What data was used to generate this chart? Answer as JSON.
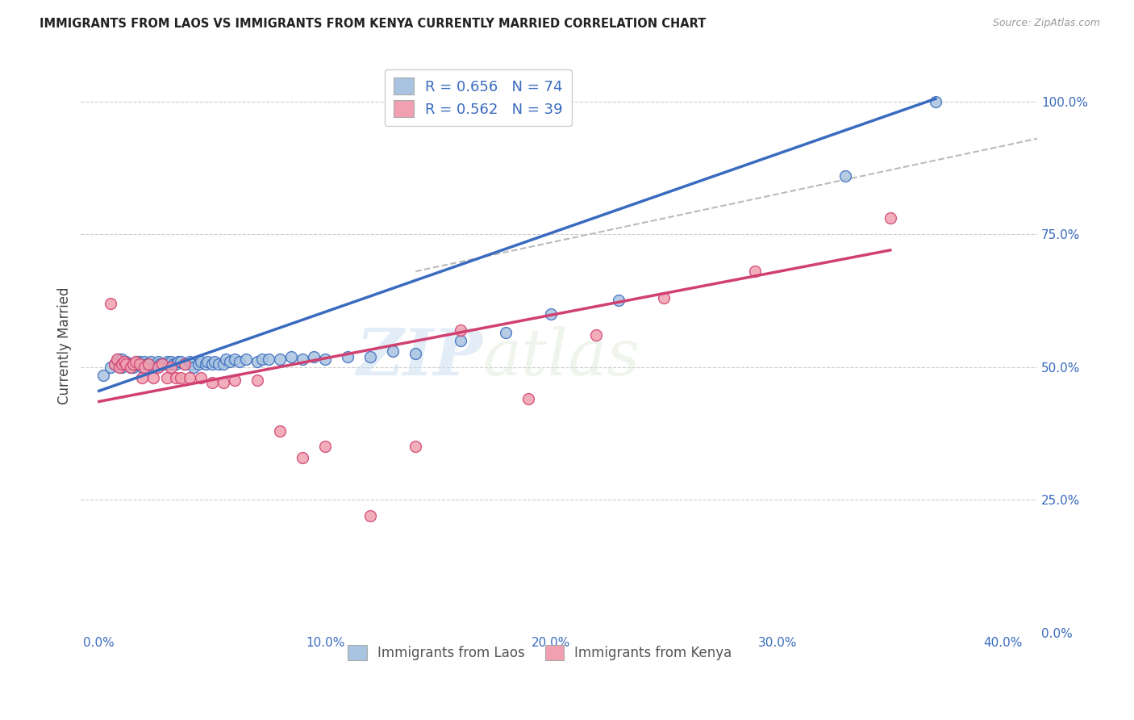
{
  "title": "IMMIGRANTS FROM LAOS VS IMMIGRANTS FROM KENYA CURRENTLY MARRIED CORRELATION CHART",
  "source": "Source: ZipAtlas.com",
  "xlabel_vals": [
    0.0,
    0.1,
    0.2,
    0.3,
    0.4
  ],
  "ylabel_vals": [
    0.0,
    0.25,
    0.5,
    0.75,
    1.0
  ],
  "xlim": [
    -0.008,
    0.415
  ],
  "ylim": [
    0.0,
    1.08
  ],
  "laos_R": 0.656,
  "laos_N": 74,
  "kenya_R": 0.562,
  "kenya_N": 39,
  "laos_color": "#a8c4e0",
  "laos_line_color": "#3a6bbf",
  "kenya_color": "#f0a0b0",
  "kenya_line_color": "#d04070",
  "watermark_zip": "ZIP",
  "watermark_atlas": "atlas",
  "background_color": "#ffffff",
  "laos_line_x0": 0.0,
  "laos_line_y0": 0.455,
  "laos_line_x1": 0.37,
  "laos_line_y1": 1.005,
  "kenya_line_x0": 0.0,
  "kenya_line_y0": 0.435,
  "kenya_line_x1": 0.35,
  "kenya_line_y1": 0.72,
  "dash_line_x0": 0.14,
  "dash_line_y0": 0.68,
  "dash_line_x1": 0.415,
  "dash_line_y1": 0.93,
  "laos_x": [
    0.002,
    0.005,
    0.007,
    0.008,
    0.009,
    0.009,
    0.01,
    0.01,
    0.01,
    0.01,
    0.011,
    0.012,
    0.013,
    0.014,
    0.015,
    0.015,
    0.016,
    0.017,
    0.018,
    0.018,
    0.019,
    0.02,
    0.02,
    0.021,
    0.022,
    0.023,
    0.024,
    0.025,
    0.026,
    0.027,
    0.028,
    0.03,
    0.03,
    0.031,
    0.032,
    0.033,
    0.034,
    0.035,
    0.036,
    0.038,
    0.04,
    0.041,
    0.042,
    0.044,
    0.045,
    0.047,
    0.048,
    0.05,
    0.051,
    0.053,
    0.055,
    0.056,
    0.058,
    0.06,
    0.062,
    0.065,
    0.07,
    0.072,
    0.075,
    0.08,
    0.085,
    0.09,
    0.095,
    0.1,
    0.11,
    0.12,
    0.13,
    0.14,
    0.16,
    0.18,
    0.2,
    0.23,
    0.33,
    0.37
  ],
  "laos_y": [
    0.485,
    0.5,
    0.505,
    0.51,
    0.51,
    0.515,
    0.5,
    0.505,
    0.51,
    0.515,
    0.505,
    0.51,
    0.505,
    0.5,
    0.5,
    0.505,
    0.505,
    0.51,
    0.505,
    0.51,
    0.5,
    0.505,
    0.51,
    0.505,
    0.505,
    0.51,
    0.5,
    0.5,
    0.51,
    0.505,
    0.505,
    0.51,
    0.505,
    0.505,
    0.51,
    0.505,
    0.505,
    0.51,
    0.51,
    0.505,
    0.51,
    0.505,
    0.5,
    0.505,
    0.51,
    0.505,
    0.51,
    0.505,
    0.51,
    0.505,
    0.505,
    0.515,
    0.51,
    0.515,
    0.51,
    0.515,
    0.51,
    0.515,
    0.515,
    0.515,
    0.52,
    0.515,
    0.52,
    0.515,
    0.52,
    0.52,
    0.53,
    0.525,
    0.55,
    0.565,
    0.6,
    0.625,
    0.86,
    1.0
  ],
  "kenya_x": [
    0.005,
    0.007,
    0.008,
    0.009,
    0.01,
    0.011,
    0.012,
    0.014,
    0.015,
    0.016,
    0.018,
    0.019,
    0.02,
    0.022,
    0.024,
    0.026,
    0.028,
    0.03,
    0.032,
    0.034,
    0.036,
    0.038,
    0.04,
    0.045,
    0.05,
    0.055,
    0.06,
    0.07,
    0.08,
    0.09,
    0.1,
    0.12,
    0.14,
    0.16,
    0.19,
    0.22,
    0.25,
    0.29,
    0.35
  ],
  "kenya_y": [
    0.62,
    0.505,
    0.515,
    0.5,
    0.505,
    0.51,
    0.505,
    0.5,
    0.505,
    0.51,
    0.505,
    0.48,
    0.5,
    0.505,
    0.48,
    0.5,
    0.505,
    0.48,
    0.5,
    0.48,
    0.48,
    0.505,
    0.48,
    0.48,
    0.47,
    0.47,
    0.475,
    0.475,
    0.38,
    0.33,
    0.35,
    0.22,
    0.35,
    0.57,
    0.44,
    0.56,
    0.63,
    0.68,
    0.78
  ]
}
